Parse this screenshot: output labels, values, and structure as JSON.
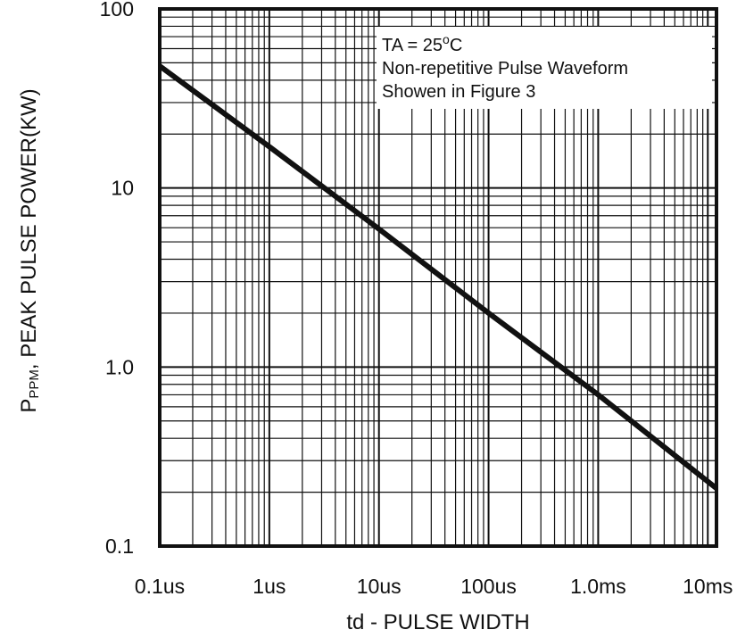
{
  "chart_data": {
    "type": "line",
    "x_scale": "log",
    "y_scale": "log",
    "x_unit": "s",
    "xlim": [
      1e-07,
      0.012
    ],
    "ylim": [
      0.1,
      100
    ],
    "x_ticks": [
      {
        "value": 1e-07,
        "label": "0.1us"
      },
      {
        "value": 1e-06,
        "label": "1us"
      },
      {
        "value": 1e-05,
        "label": "10us"
      },
      {
        "value": 0.0001,
        "label": "100us"
      },
      {
        "value": 0.001,
        "label": "1.0ms"
      },
      {
        "value": 0.01,
        "label": "10ms"
      }
    ],
    "y_ticks": [
      {
        "value": 0.1,
        "label": "0.1"
      },
      {
        "value": 1,
        "label": "1.0"
      },
      {
        "value": 10,
        "label": "10"
      },
      {
        "value": 100,
        "label": "100"
      }
    ],
    "xlabel": "td - PULSE WIDTH",
    "ylabel": {
      "prefix": "P",
      "sub": "PPM",
      "rest": ", PEAK PULSE POWER(KW)"
    },
    "grid": true,
    "series": [
      {
        "x": [
          1e-07,
          1e-06,
          1e-05,
          0.0001,
          0.001,
          0.012
        ],
        "y": [
          48,
          17,
          5.9,
          2.0,
          0.7,
          0.21
        ]
      }
    ],
    "annotation": {
      "lines": [
        {
          "text": "TA = 25",
          "sup": "o",
          "tail": "C"
        },
        {
          "text": "Non-repetitive Pulse Waveform"
        },
        {
          "text": "Showen in Figure 3"
        }
      ],
      "position": "top-right"
    }
  }
}
